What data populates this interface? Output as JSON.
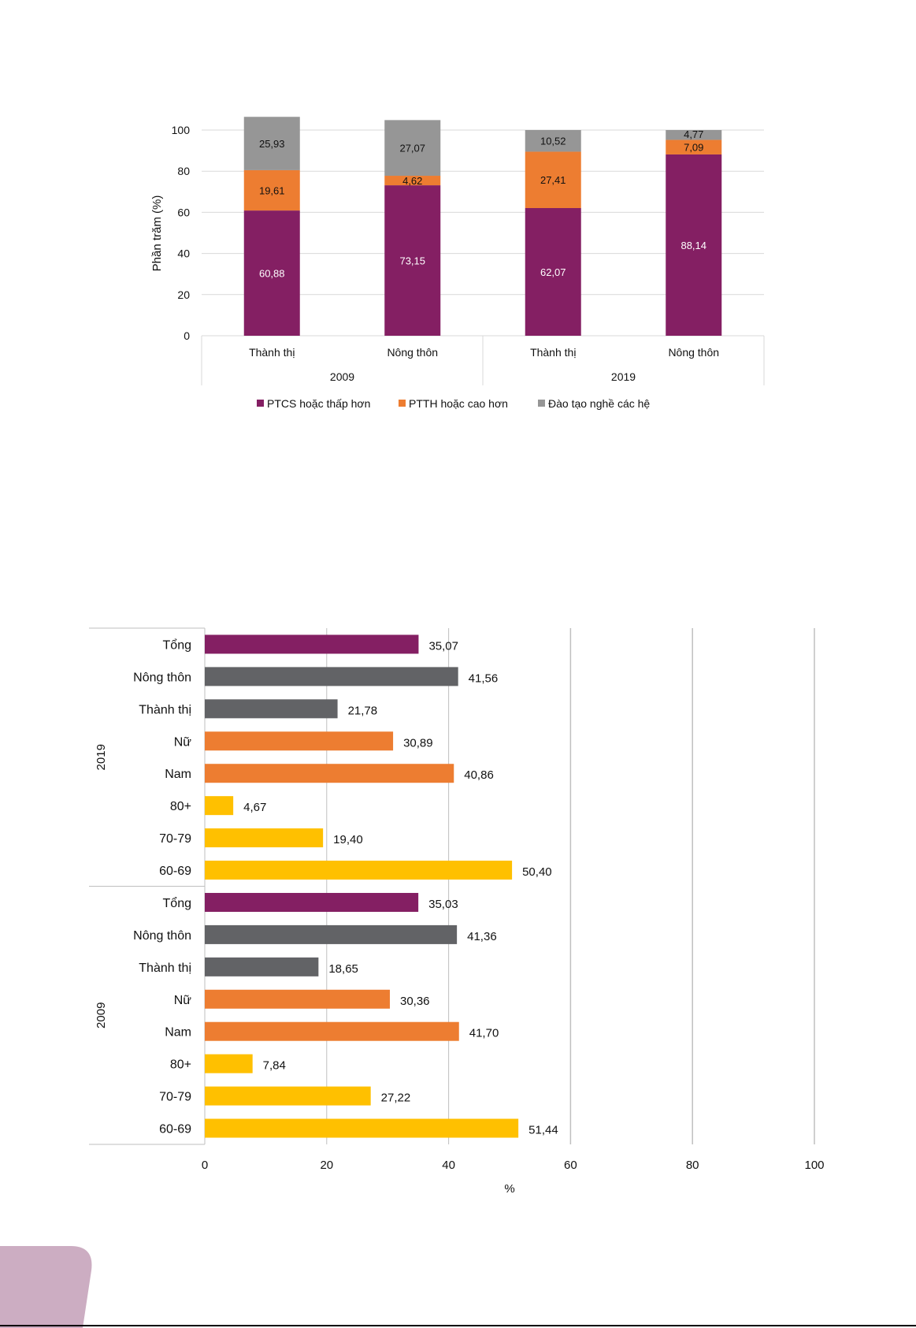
{
  "chart_data": [
    {
      "type": "bar",
      "stacked": true,
      "ylabel": "Phần trăm (%)",
      "ylim": [
        0,
        100
      ],
      "yticks": [
        0,
        20,
        40,
        60,
        80,
        100
      ],
      "grid": true,
      "legend_position": "bottom",
      "groups": [
        "2009",
        "2019"
      ],
      "categories": [
        "Thành thị",
        "Nông thôn",
        "Thành thị",
        "Nông thôn"
      ],
      "category_group": [
        0,
        0,
        1,
        1
      ],
      "series": [
        {
          "name": "PTCS hoặc thấp hơn",
          "color": "#841F63",
          "values": [
            60.88,
            73.15,
            62.07,
            88.14
          ],
          "labels": [
            "60,88",
            "73,15",
            "62,07",
            "88,14"
          ]
        },
        {
          "name": "PTTH hoặc cao hơn",
          "color": "#ED7D31",
          "values": [
            19.61,
            4.62,
            27.41,
            7.09
          ],
          "labels": [
            "19,61",
            "4,62",
            "27,41",
            "7,09"
          ]
        },
        {
          "name": "Đào tạo nghề các hệ",
          "color": "#969696",
          "values": [
            25.93,
            27.07,
            10.52,
            4.77
          ],
          "labels": [
            "25,93",
            "27,07",
            "10,52",
            "4,77"
          ]
        }
      ]
    },
    {
      "type": "bar",
      "orientation": "horizontal",
      "xlabel": "%",
      "xlim": [
        0,
        100
      ],
      "xticks": [
        0,
        20,
        40,
        60,
        80,
        100
      ],
      "grid": true,
      "groups": [
        {
          "name": "2019",
          "rows": [
            {
              "label": "Tổng",
              "value": 35.07,
              "text": "35,07",
              "color": "#841F63"
            },
            {
              "label": "Nông thôn",
              "value": 41.56,
              "text": "41,56",
              "color": "#626366"
            },
            {
              "label": "Thành thị",
              "value": 21.78,
              "text": "21,78",
              "color": "#626366"
            },
            {
              "label": "Nữ",
              "value": 30.89,
              "text": "30,89",
              "color": "#ED7D31"
            },
            {
              "label": "Nam",
              "value": 40.86,
              "text": "40,86",
              "color": "#ED7D31"
            },
            {
              "label": "80+",
              "value": 4.67,
              "text": "4,67",
              "color": "#FFC000"
            },
            {
              "label": "70-79",
              "value": 19.4,
              "text": "19,40",
              "color": "#FFC000"
            },
            {
              "label": "60-69",
              "value": 50.4,
              "text": "50,40",
              "color": "#FFC000"
            }
          ]
        },
        {
          "name": "2009",
          "rows": [
            {
              "label": "Tổng",
              "value": 35.03,
              "text": "35,03",
              "color": "#841F63"
            },
            {
              "label": "Nông thôn",
              "value": 41.36,
              "text": "41,36",
              "color": "#626366"
            },
            {
              "label": "Thành thị",
              "value": 18.65,
              "text": "18,65",
              "color": "#626366"
            },
            {
              "label": "Nữ",
              "value": 30.36,
              "text": "30,36",
              "color": "#ED7D31"
            },
            {
              "label": "Nam",
              "value": 41.7,
              "text": "41,70",
              "color": "#ED7D31"
            },
            {
              "label": "80+",
              "value": 7.84,
              "text": "7,84",
              "color": "#FFC000"
            },
            {
              "label": "70-79",
              "value": 27.22,
              "text": "27,22",
              "color": "#FFC000"
            },
            {
              "label": "60-69",
              "value": 51.44,
              "text": "51,44",
              "color": "#FFC000"
            }
          ]
        }
      ]
    }
  ],
  "page": {
    "tab_color": "#CCADC2"
  }
}
